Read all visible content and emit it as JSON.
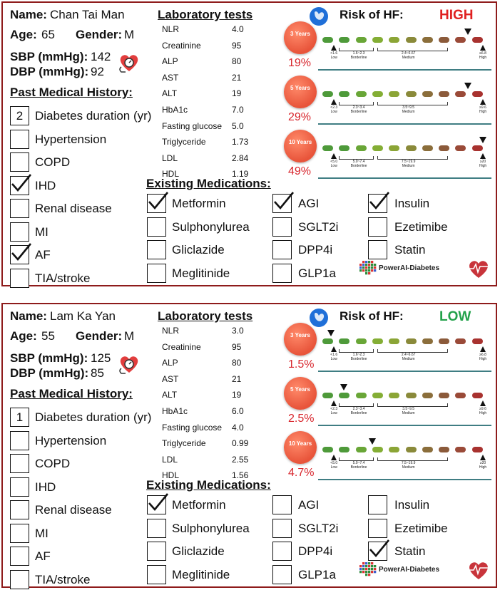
{
  "colors": {
    "border": "#8e1b1b",
    "high": "#e02020",
    "low": "#22a14a",
    "pct": "#d8262d",
    "teal_line": "#3f7d83"
  },
  "patients": [
    {
      "name_label": "Name:",
      "name": "Chan Tai Man",
      "age_label": "Age:",
      "age": "65",
      "gender_label": "Gender:",
      "gender": "M",
      "sbp_label": "SBP (mmHg):",
      "sbp": "142",
      "dbp_label": "DBP (mmHg):",
      "dbp": "92",
      "history_title": "Past Medical History:",
      "history": [
        {
          "label": "Diabetes duration (yr)",
          "value": "2",
          "checked": false
        },
        {
          "label": "Hypertension",
          "checked": false
        },
        {
          "label": "COPD",
          "checked": false
        },
        {
          "label": "IHD",
          "checked": true
        },
        {
          "label": "Renal disease",
          "checked": false
        },
        {
          "label": "MI",
          "checked": false
        },
        {
          "label": "AF",
          "checked": true
        },
        {
          "label": "TIA/stroke",
          "checked": false
        }
      ],
      "lab_title": "Laboratory tests",
      "labs": [
        {
          "name": "NLR",
          "value": "4.0"
        },
        {
          "name": "Creatinine",
          "value": "95"
        },
        {
          "name": "ALP",
          "value": "80"
        },
        {
          "name": "AST",
          "value": "21"
        },
        {
          "name": "ALT",
          "value": "19"
        },
        {
          "name": "HbA1c",
          "value": "7.0"
        },
        {
          "name": "Fasting glucose",
          "value": "5.0"
        },
        {
          "name": "Triglyceride",
          "value": "1.73"
        },
        {
          "name": "LDL",
          "value": "2.84"
        },
        {
          "name": "HDL",
          "value": "1.19"
        }
      ],
      "med_title": "Existing Medications:",
      "meds": [
        {
          "label": "Metformin",
          "checked": true
        },
        {
          "label": "Sulphonylurea",
          "checked": false
        },
        {
          "label": "Gliclazide",
          "checked": false
        },
        {
          "label": "Meglitinide",
          "checked": false
        },
        {
          "label": "AGI",
          "checked": true
        },
        {
          "label": "SGLT2i",
          "checked": false
        },
        {
          "label": "DPP4i",
          "checked": false
        },
        {
          "label": "GLP1a",
          "checked": false
        },
        {
          "label": "Insulin",
          "checked": true
        },
        {
          "label": "Ezetimibe",
          "checked": false
        },
        {
          "label": "Statin",
          "checked": false
        }
      ],
      "risk_title": "Risk of HF:",
      "risk_level": "HIGH",
      "risk_color": "#e02020",
      "horizons": [
        {
          "label": "3 Years",
          "percent": "19%",
          "marker_fraction": 0.88,
          "ticks": [
            {
              "range": "<1.6",
              "cat": "Low"
            },
            {
              "range": "1.6~2.3",
              "cat": "Borderline"
            },
            {
              "range": "2.4~6.67",
              "cat": "Medium"
            },
            {
              "range": "≥6.8",
              "cat": "High"
            }
          ]
        },
        {
          "label": "5 Years",
          "percent": "29%",
          "marker_fraction": 0.88,
          "ticks": [
            {
              "range": "<2.3",
              "cat": "Low"
            },
            {
              "range": "2.3~3.4",
              "cat": "Borderline"
            },
            {
              "range": "3.5~9.5",
              "cat": "Medium"
            },
            {
              "range": "≥9.6",
              "cat": "High"
            }
          ]
        },
        {
          "label": "10 Years",
          "percent": "49%",
          "marker_fraction": 0.97,
          "ticks": [
            {
              "range": "<5.0",
              "cat": "Low"
            },
            {
              "range": "5.0~7.4",
              "cat": "Borderline"
            },
            {
              "range": "7.5~19.9",
              "cat": "Medium"
            },
            {
              "range": "≥20",
              "cat": "High"
            }
          ]
        }
      ],
      "brand": "PowerAI-Diabetes"
    },
    {
      "name_label": "Name:",
      "name": "Lam Ka Yan",
      "age_label": "Age:",
      "age": "55",
      "gender_label": "Gender:",
      "gender": "M",
      "sbp_label": "SBP (mmHg):",
      "sbp": "125",
      "dbp_label": "DBP (mmHg):",
      "dbp": "85",
      "history_title": "Past Medical History:",
      "history": [
        {
          "label": "Diabetes duration (yr)",
          "value": "1",
          "checked": false
        },
        {
          "label": "Hypertension",
          "checked": false
        },
        {
          "label": "COPD",
          "checked": false
        },
        {
          "label": "IHD",
          "checked": false
        },
        {
          "label": "Renal disease",
          "checked": false
        },
        {
          "label": "MI",
          "checked": false
        },
        {
          "label": "AF",
          "checked": false
        },
        {
          "label": "TIA/stroke",
          "checked": false
        }
      ],
      "lab_title": "Laboratory tests",
      "labs": [
        {
          "name": "NLR",
          "value": "3.0"
        },
        {
          "name": "Creatinine",
          "value": "95"
        },
        {
          "name": "ALP",
          "value": "80"
        },
        {
          "name": "AST",
          "value": "21"
        },
        {
          "name": "ALT",
          "value": "19"
        },
        {
          "name": "HbA1c",
          "value": "6.0"
        },
        {
          "name": "Fasting glucose",
          "value": "4.0"
        },
        {
          "name": "Triglyceride",
          "value": "0.99"
        },
        {
          "name": "LDL",
          "value": "2.55"
        },
        {
          "name": "HDL",
          "value": "1.56"
        }
      ],
      "med_title": "Existing Medications:",
      "meds": [
        {
          "label": "Metformin",
          "checked": true
        },
        {
          "label": "Sulphonylurea",
          "checked": false
        },
        {
          "label": "Gliclazide",
          "checked": false
        },
        {
          "label": "Meglitinide",
          "checked": false
        },
        {
          "label": "AGI",
          "checked": false
        },
        {
          "label": "SGLT2i",
          "checked": false
        },
        {
          "label": "DPP4i",
          "checked": false
        },
        {
          "label": "GLP1a",
          "checked": false
        },
        {
          "label": "Insulin",
          "checked": false
        },
        {
          "label": "Ezetimibe",
          "checked": false
        },
        {
          "label": "Statin",
          "checked": true
        }
      ],
      "risk_title": "Risk of HF:",
      "risk_level": "LOW",
      "risk_color": "#22a14a",
      "horizons": [
        {
          "label": "3 Years",
          "percent": "1.5%",
          "marker_fraction": 0.05,
          "ticks": [
            {
              "range": "<1.6",
              "cat": "Low"
            },
            {
              "range": "1.6~2.3",
              "cat": "Borderline"
            },
            {
              "range": "2.4~6.67",
              "cat": "Medium"
            },
            {
              "range": "≥6.8",
              "cat": "High"
            }
          ]
        },
        {
          "label": "5 Years",
          "percent": "2.5%",
          "marker_fraction": 0.13,
          "ticks": [
            {
              "range": "<2.3",
              "cat": "Low"
            },
            {
              "range": "2.3~3.4",
              "cat": "Borderline"
            },
            {
              "range": "3.5~9.5",
              "cat": "Medium"
            },
            {
              "range": "≥9.6",
              "cat": "High"
            }
          ]
        },
        {
          "label": "10 Years",
          "percent": "4.7%",
          "marker_fraction": 0.3,
          "ticks": [
            {
              "range": "<5.0",
              "cat": "Low"
            },
            {
              "range": "5.0~7.4",
              "cat": "Borderline"
            },
            {
              "range": "7.5~19.9",
              "cat": "Medium"
            },
            {
              "range": "≥20",
              "cat": "High"
            }
          ]
        }
      ],
      "brand": "PowerAI-Diabetes"
    }
  ]
}
